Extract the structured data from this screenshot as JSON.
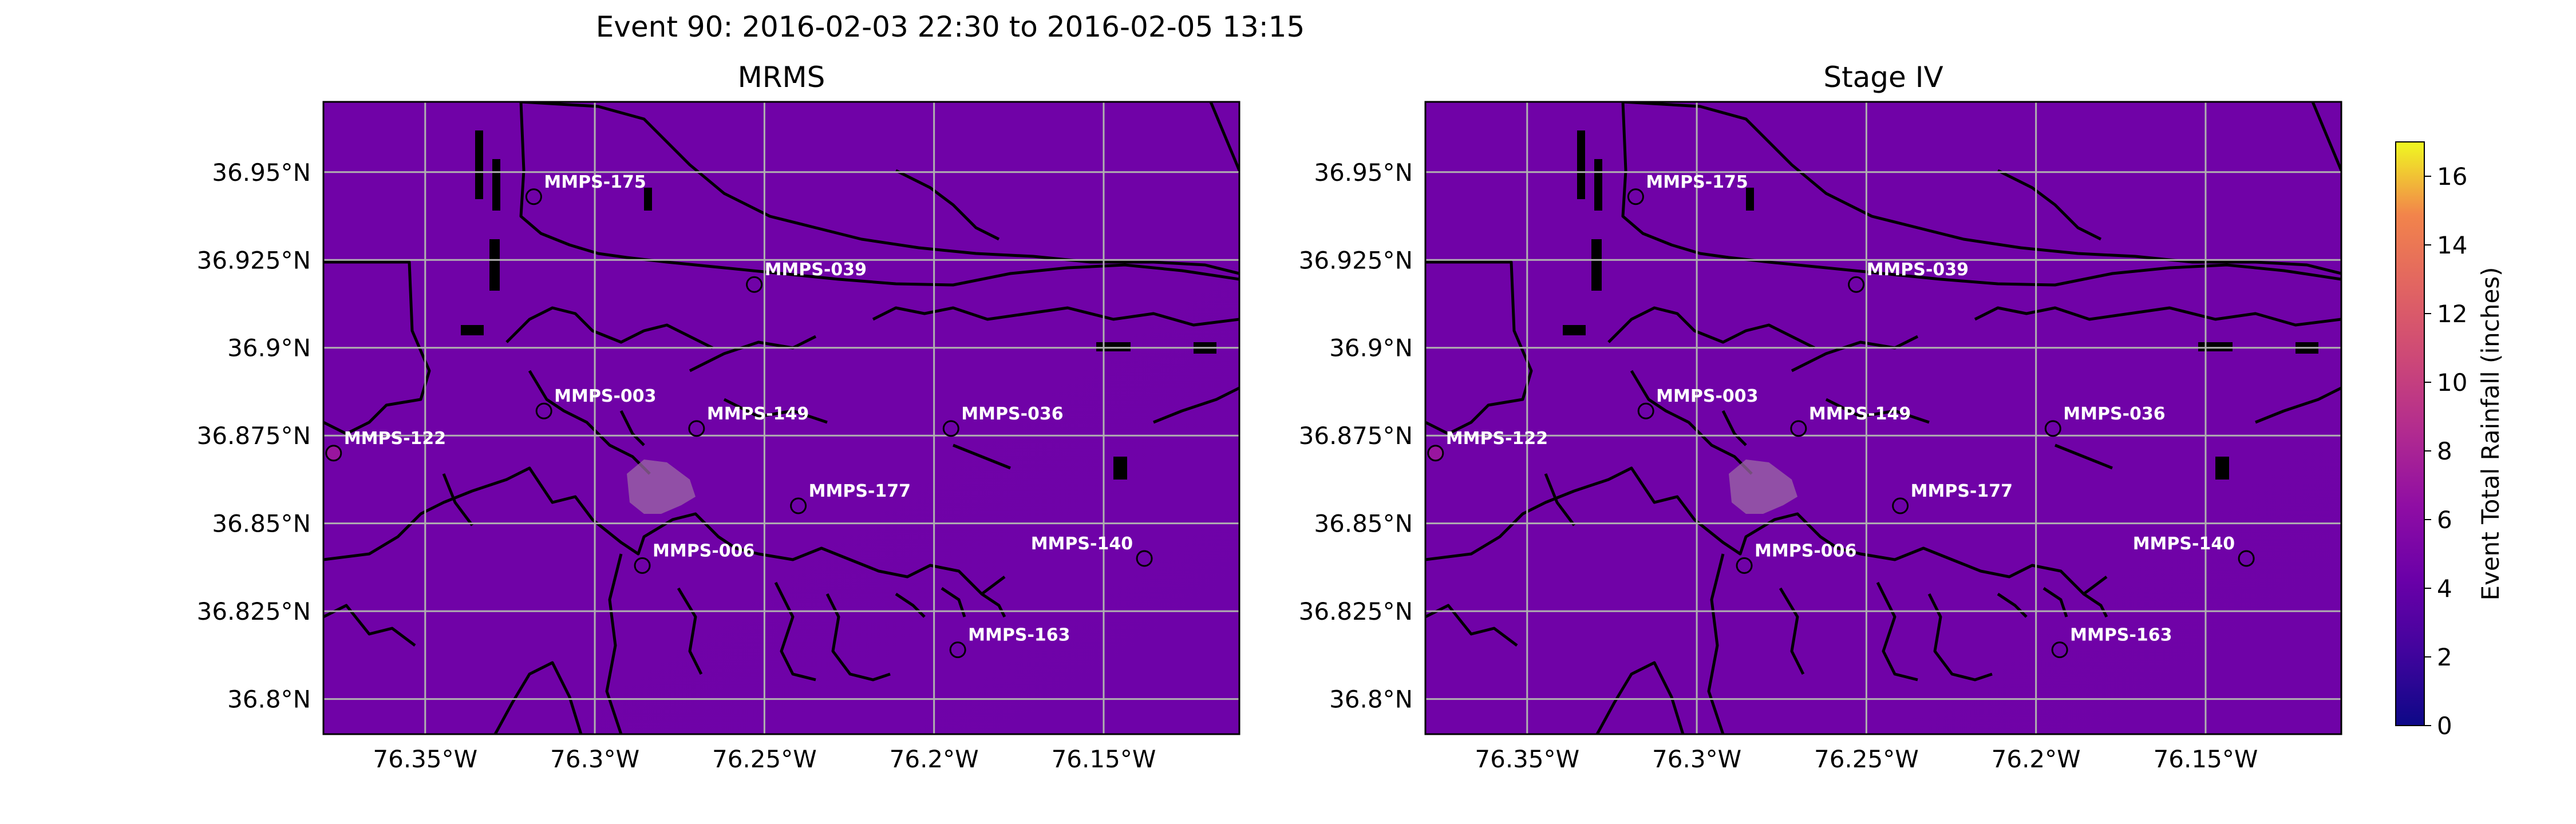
{
  "chart_data": {
    "type": "heatmap",
    "title": "Event 90: 2016-02-03 22:30 to 2016-02-05 13:15",
    "colorbar": {
      "label": "Event Total Rainfall (inches)",
      "colormap": "plasma",
      "range": [
        0,
        17
      ],
      "ticks": [
        "0",
        "2",
        "4",
        "6",
        "8",
        "10",
        "12",
        "14",
        "16"
      ],
      "tick_values": [
        0,
        2,
        4,
        6,
        8,
        10,
        12,
        14,
        16
      ]
    },
    "x_range": [
      -76.38,
      -76.11
    ],
    "y_range": [
      36.79,
      36.97
    ],
    "x_ticks": [
      {
        "value": -76.35,
        "label": "76.35°W"
      },
      {
        "value": -76.3,
        "label": "76.3°W"
      },
      {
        "value": -76.25,
        "label": "76.25°W"
      },
      {
        "value": -76.2,
        "label": "76.2°W"
      },
      {
        "value": -76.15,
        "label": "76.15°W"
      }
    ],
    "y_ticks": [
      {
        "value": 36.95,
        "label": "36.95°N"
      },
      {
        "value": 36.925,
        "label": "36.925°N"
      },
      {
        "value": 36.9,
        "label": "36.9°N"
      },
      {
        "value": 36.875,
        "label": "36.875°N"
      },
      {
        "value": 36.85,
        "label": "36.85°N"
      },
      {
        "value": 36.825,
        "label": "36.825°N"
      },
      {
        "value": 36.8,
        "label": "36.8°N"
      }
    ],
    "grid": true,
    "panels": [
      {
        "title": "MRMS",
        "field": {
          "west": 4.05,
          "east": 4.15,
          "south": 4.0,
          "north": 4.1
        }
      },
      {
        "title": "Stage IV",
        "field": {
          "west": 4.08,
          "east": 4.1,
          "south": 4.05,
          "north": 4.08
        }
      }
    ],
    "gauges": [
      {
        "name": "MMPS-175",
        "lon": -76.318,
        "lat": 36.943,
        "value": 4.1,
        "label_side": "right"
      },
      {
        "name": "MMPS-039",
        "lon": -76.253,
        "lat": 36.918,
        "value": 4.1,
        "label_side": "right"
      },
      {
        "name": "MMPS-003",
        "lon": -76.315,
        "lat": 36.882,
        "value": 4.0,
        "label_side": "right"
      },
      {
        "name": "MMPS-149",
        "lon": -76.27,
        "lat": 36.877,
        "value": 4.1,
        "label_side": "right"
      },
      {
        "name": "MMPS-036",
        "lon": -76.195,
        "lat": 36.877,
        "value": 4.0,
        "label_side": "right"
      },
      {
        "name": "MMPS-122",
        "lon": -76.377,
        "lat": 36.87,
        "value": 6.2,
        "label_side": "right"
      },
      {
        "name": "MMPS-177",
        "lon": -76.24,
        "lat": 36.855,
        "value": 4.0,
        "label_side": "right"
      },
      {
        "name": "MMPS-140",
        "lon": -76.138,
        "lat": 36.84,
        "value": 4.0,
        "label_side": "left"
      },
      {
        "name": "MMPS-006",
        "lon": -76.286,
        "lat": 36.838,
        "value": 4.1,
        "label_side": "right"
      },
      {
        "name": "MMPS-163",
        "lon": -76.193,
        "lat": 36.814,
        "value": 4.0,
        "label_side": "right"
      }
    ]
  }
}
